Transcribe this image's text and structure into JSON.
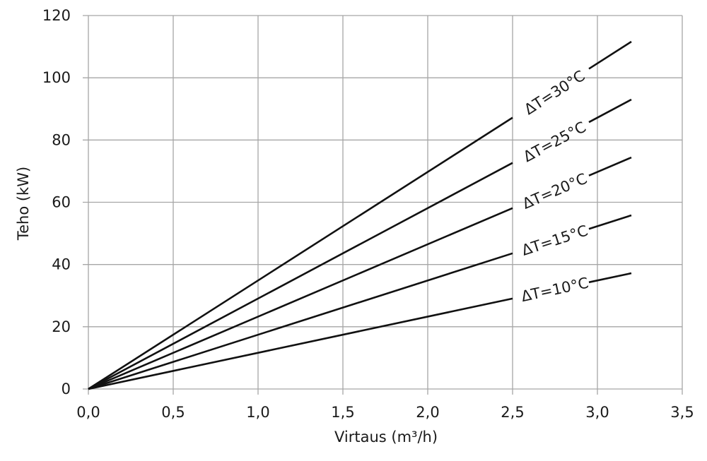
{
  "chart_data": {
    "type": "line",
    "xlabel": "Virtaus (m³/h)",
    "ylabel": "Teho (kW)",
    "xlim": [
      0,
      3.5
    ],
    "ylim": [
      0,
      120
    ],
    "x_ticks": [
      0,
      0.5,
      1.0,
      1.5,
      2.0,
      2.5,
      3.0,
      3.5
    ],
    "x_tick_labels": [
      "0,0",
      "0,5",
      "1,0",
      "1,5",
      "2,0",
      "2,5",
      "3,0",
      "3,5"
    ],
    "y_ticks": [
      0,
      20,
      40,
      60,
      80,
      100,
      120
    ],
    "y_tick_labels": [
      "0",
      "20",
      "40",
      "60",
      "80",
      "100",
      "120"
    ],
    "grid": true,
    "legend": "inline labels",
    "series": [
      {
        "name": "ΔT=30°C",
        "x": [
          0,
          3.2
        ],
        "y": [
          0,
          111.6
        ]
      },
      {
        "name": "ΔT=25°C",
        "x": [
          0,
          3.2
        ],
        "y": [
          0,
          93.0
        ]
      },
      {
        "name": "ΔT=20°C",
        "x": [
          0,
          3.2
        ],
        "y": [
          0,
          74.4
        ]
      },
      {
        "name": "ΔT=15°C",
        "x": [
          0,
          3.2
        ],
        "y": [
          0,
          55.8
        ]
      },
      {
        "name": "ΔT=10°C",
        "x": [
          0,
          3.2
        ],
        "y": [
          0,
          37.2
        ]
      }
    ],
    "colors": {
      "line": "#111111",
      "grid": "#a6a6a6"
    }
  }
}
